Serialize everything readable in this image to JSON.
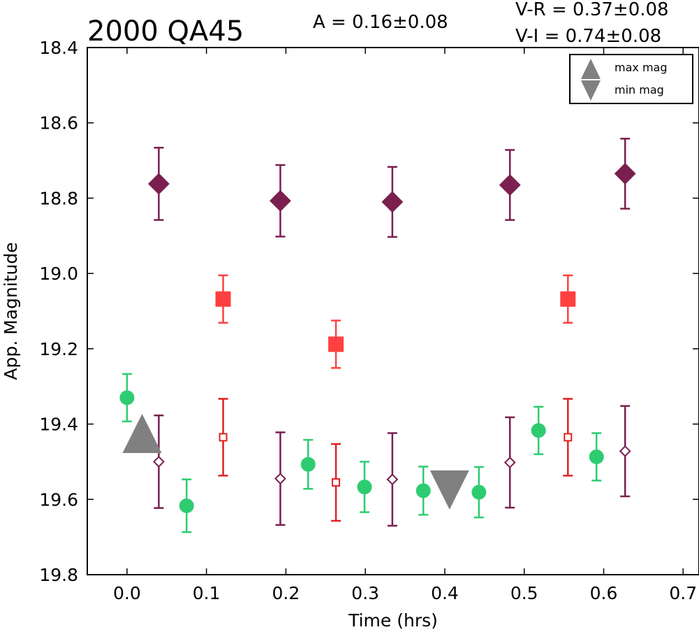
{
  "chart_data": {
    "type": "scatter",
    "title": "2000 QA45",
    "annotations": {
      "amplitude": "A  = 0.16±0.08",
      "v_r": "V-R = 0.37±0.08",
      "v_i": "V-I  = 0.74±0.08"
    },
    "xlabel": "Time (hrs)",
    "ylabel": "App. Magnitude",
    "xlim": [
      -0.05,
      0.72
    ],
    "ylim": [
      18.4,
      19.8
    ],
    "y_inverted": true,
    "grid": false,
    "xticks": [
      "0.0",
      "0.1",
      "0.2",
      "0.3",
      "0.4",
      "0.5",
      "0.6",
      "0.7"
    ],
    "xtick_values": [
      0.0,
      0.1,
      0.2,
      0.3,
      0.4,
      0.5,
      0.6,
      0.7
    ],
    "yticks": [
      "18.4",
      "18.6",
      "18.8",
      "19.0",
      "19.2",
      "19.4",
      "19.6",
      "19.8"
    ],
    "ytick_values": [
      18.4,
      18.6,
      18.8,
      19.0,
      19.2,
      19.4,
      19.6,
      19.8
    ],
    "legend": {
      "placement": "top-right",
      "entries": [
        {
          "label": "max mag",
          "marker": "triangle-up",
          "color": "#808080"
        },
        {
          "label": "min mag",
          "marker": "triangle-down",
          "color": "#808080"
        }
      ]
    },
    "series": [
      {
        "marker": "circle",
        "color": "#2ecc71",
        "filled": true,
        "x": [
          0.0,
          0.075,
          0.228,
          0.299,
          0.373,
          0.443,
          0.518,
          0.591
        ],
        "y": [
          19.33,
          19.617,
          19.507,
          19.567,
          19.577,
          19.581,
          19.417,
          19.487
        ],
        "err": [
          0.063,
          0.07,
          0.065,
          0.067,
          0.064,
          0.067,
          0.063,
          0.063
        ]
      },
      {
        "marker": "diamond",
        "color": "#7b1f4f",
        "filled": true,
        "x": [
          0.04,
          0.193,
          0.334,
          0.482,
          0.627
        ],
        "y": [
          18.762,
          18.807,
          18.81,
          18.765,
          18.735
        ],
        "err": [
          0.096,
          0.095,
          0.093,
          0.093,
          0.093
        ]
      },
      {
        "marker": "square",
        "color": "#ff4040",
        "filled": true,
        "x": [
          0.121,
          0.263,
          0.555
        ],
        "y": [
          19.068,
          19.188,
          19.068
        ],
        "err": [
          0.063,
          0.063,
          0.063
        ]
      },
      {
        "marker": "diamond",
        "color": "#7b1f4f",
        "filled": false,
        "x": [
          0.04,
          0.193,
          0.334,
          0.482,
          0.627
        ],
        "y": [
          19.5,
          19.545,
          19.547,
          19.502,
          19.472
        ],
        "err": [
          0.123,
          0.123,
          0.123,
          0.12,
          0.12
        ]
      },
      {
        "marker": "square",
        "color": "#e02020",
        "filled": false,
        "x": [
          0.121,
          0.263,
          0.555
        ],
        "y": [
          19.435,
          19.555,
          19.435
        ],
        "err": [
          0.102,
          0.102,
          0.102
        ]
      }
    ],
    "extrema": [
      {
        "marker": "triangle-up",
        "color": "#808080",
        "x": 0.019,
        "y": 19.425
      },
      {
        "marker": "triangle-down",
        "color": "#808080",
        "x": 0.406,
        "y": 19.575
      }
    ]
  }
}
